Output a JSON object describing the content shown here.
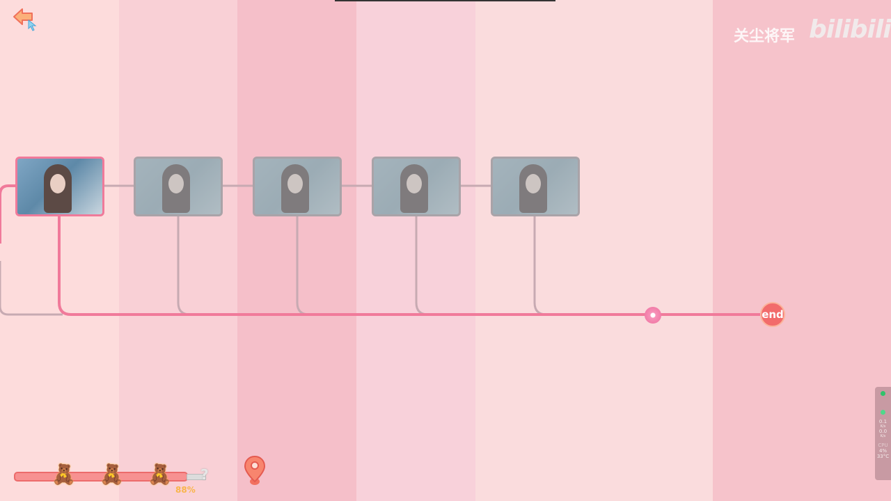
{
  "watermark": {
    "author": "关尘将军",
    "logo": "bilibili"
  },
  "timeline": {
    "nodes": [
      {
        "state": "active"
      },
      {
        "state": "locked"
      },
      {
        "state": "locked"
      },
      {
        "state": "locked"
      },
      {
        "state": "locked"
      }
    ],
    "end_label": "end"
  },
  "progress": {
    "percent_label": "88%",
    "value": 0.88,
    "unknown_marker": "?"
  },
  "system_monitor": {
    "upload": "0.1",
    "upload_unit": "K/s",
    "download": "0.0",
    "download_unit": "K/s",
    "cpu_label": "CPU",
    "cpu": "4%",
    "temp": "33°C"
  },
  "colors": {
    "accent": "#f07a9a",
    "end_badge": "#f26b6b"
  }
}
